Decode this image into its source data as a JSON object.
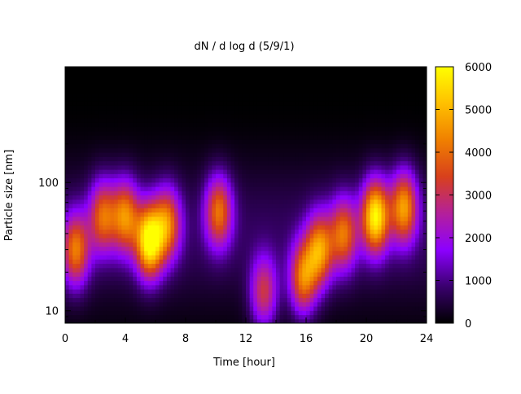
{
  "chart_data": {
    "type": "heatmap",
    "title": "dN / d log d (5/9/1)",
    "xlabel": "Time [hour]",
    "ylabel": "Particle size [nm]",
    "x_ticks": [
      "0",
      "4",
      "8",
      "12",
      "16",
      "20",
      "24"
    ],
    "x_tick_values": [
      0,
      4,
      8,
      12,
      16,
      20,
      24
    ],
    "xlim": [
      0,
      24
    ],
    "y_scale": "log",
    "y_ticks": [
      "10",
      "100"
    ],
    "y_tick_values": [
      10,
      100
    ],
    "ylim": [
      8,
      800
    ],
    "colorbar": {
      "ticks": [
        "0",
        "1000",
        "2000",
        "3000",
        "4000",
        "5000",
        "6000"
      ],
      "tick_values": [
        0,
        1000,
        2000,
        3000,
        4000,
        5000,
        6000
      ],
      "range": [
        0,
        6000
      ],
      "colormap": [
        "#000000",
        "#3a006e",
        "#8c00ff",
        "#b4209a",
        "#d8401c",
        "#f08000",
        "#ffc000",
        "#ffff00"
      ]
    },
    "grid": false,
    "legend": "colorbar-right",
    "ridges": [
      {
        "t": 0.7,
        "d": 30,
        "value": 3600
      },
      {
        "t": 2.5,
        "d": 55,
        "value": 3300
      },
      {
        "t": 4.0,
        "d": 55,
        "value": 3700
      },
      {
        "t": 5.6,
        "d": 35,
        "value": 5500
      },
      {
        "t": 6.8,
        "d": 48,
        "value": 3500
      },
      {
        "t": 10.2,
        "d": 60,
        "value": 3500
      },
      {
        "t": 13.2,
        "d": 14,
        "value": 2800
      },
      {
        "t": 15.8,
        "d": 18,
        "value": 3700
      },
      {
        "t": 16.9,
        "d": 30,
        "value": 3900
      },
      {
        "t": 18.5,
        "d": 40,
        "value": 3400
      },
      {
        "t": 20.6,
        "d": 55,
        "value": 5300
      },
      {
        "t": 22.5,
        "d": 65,
        "value": 4100
      }
    ]
  }
}
